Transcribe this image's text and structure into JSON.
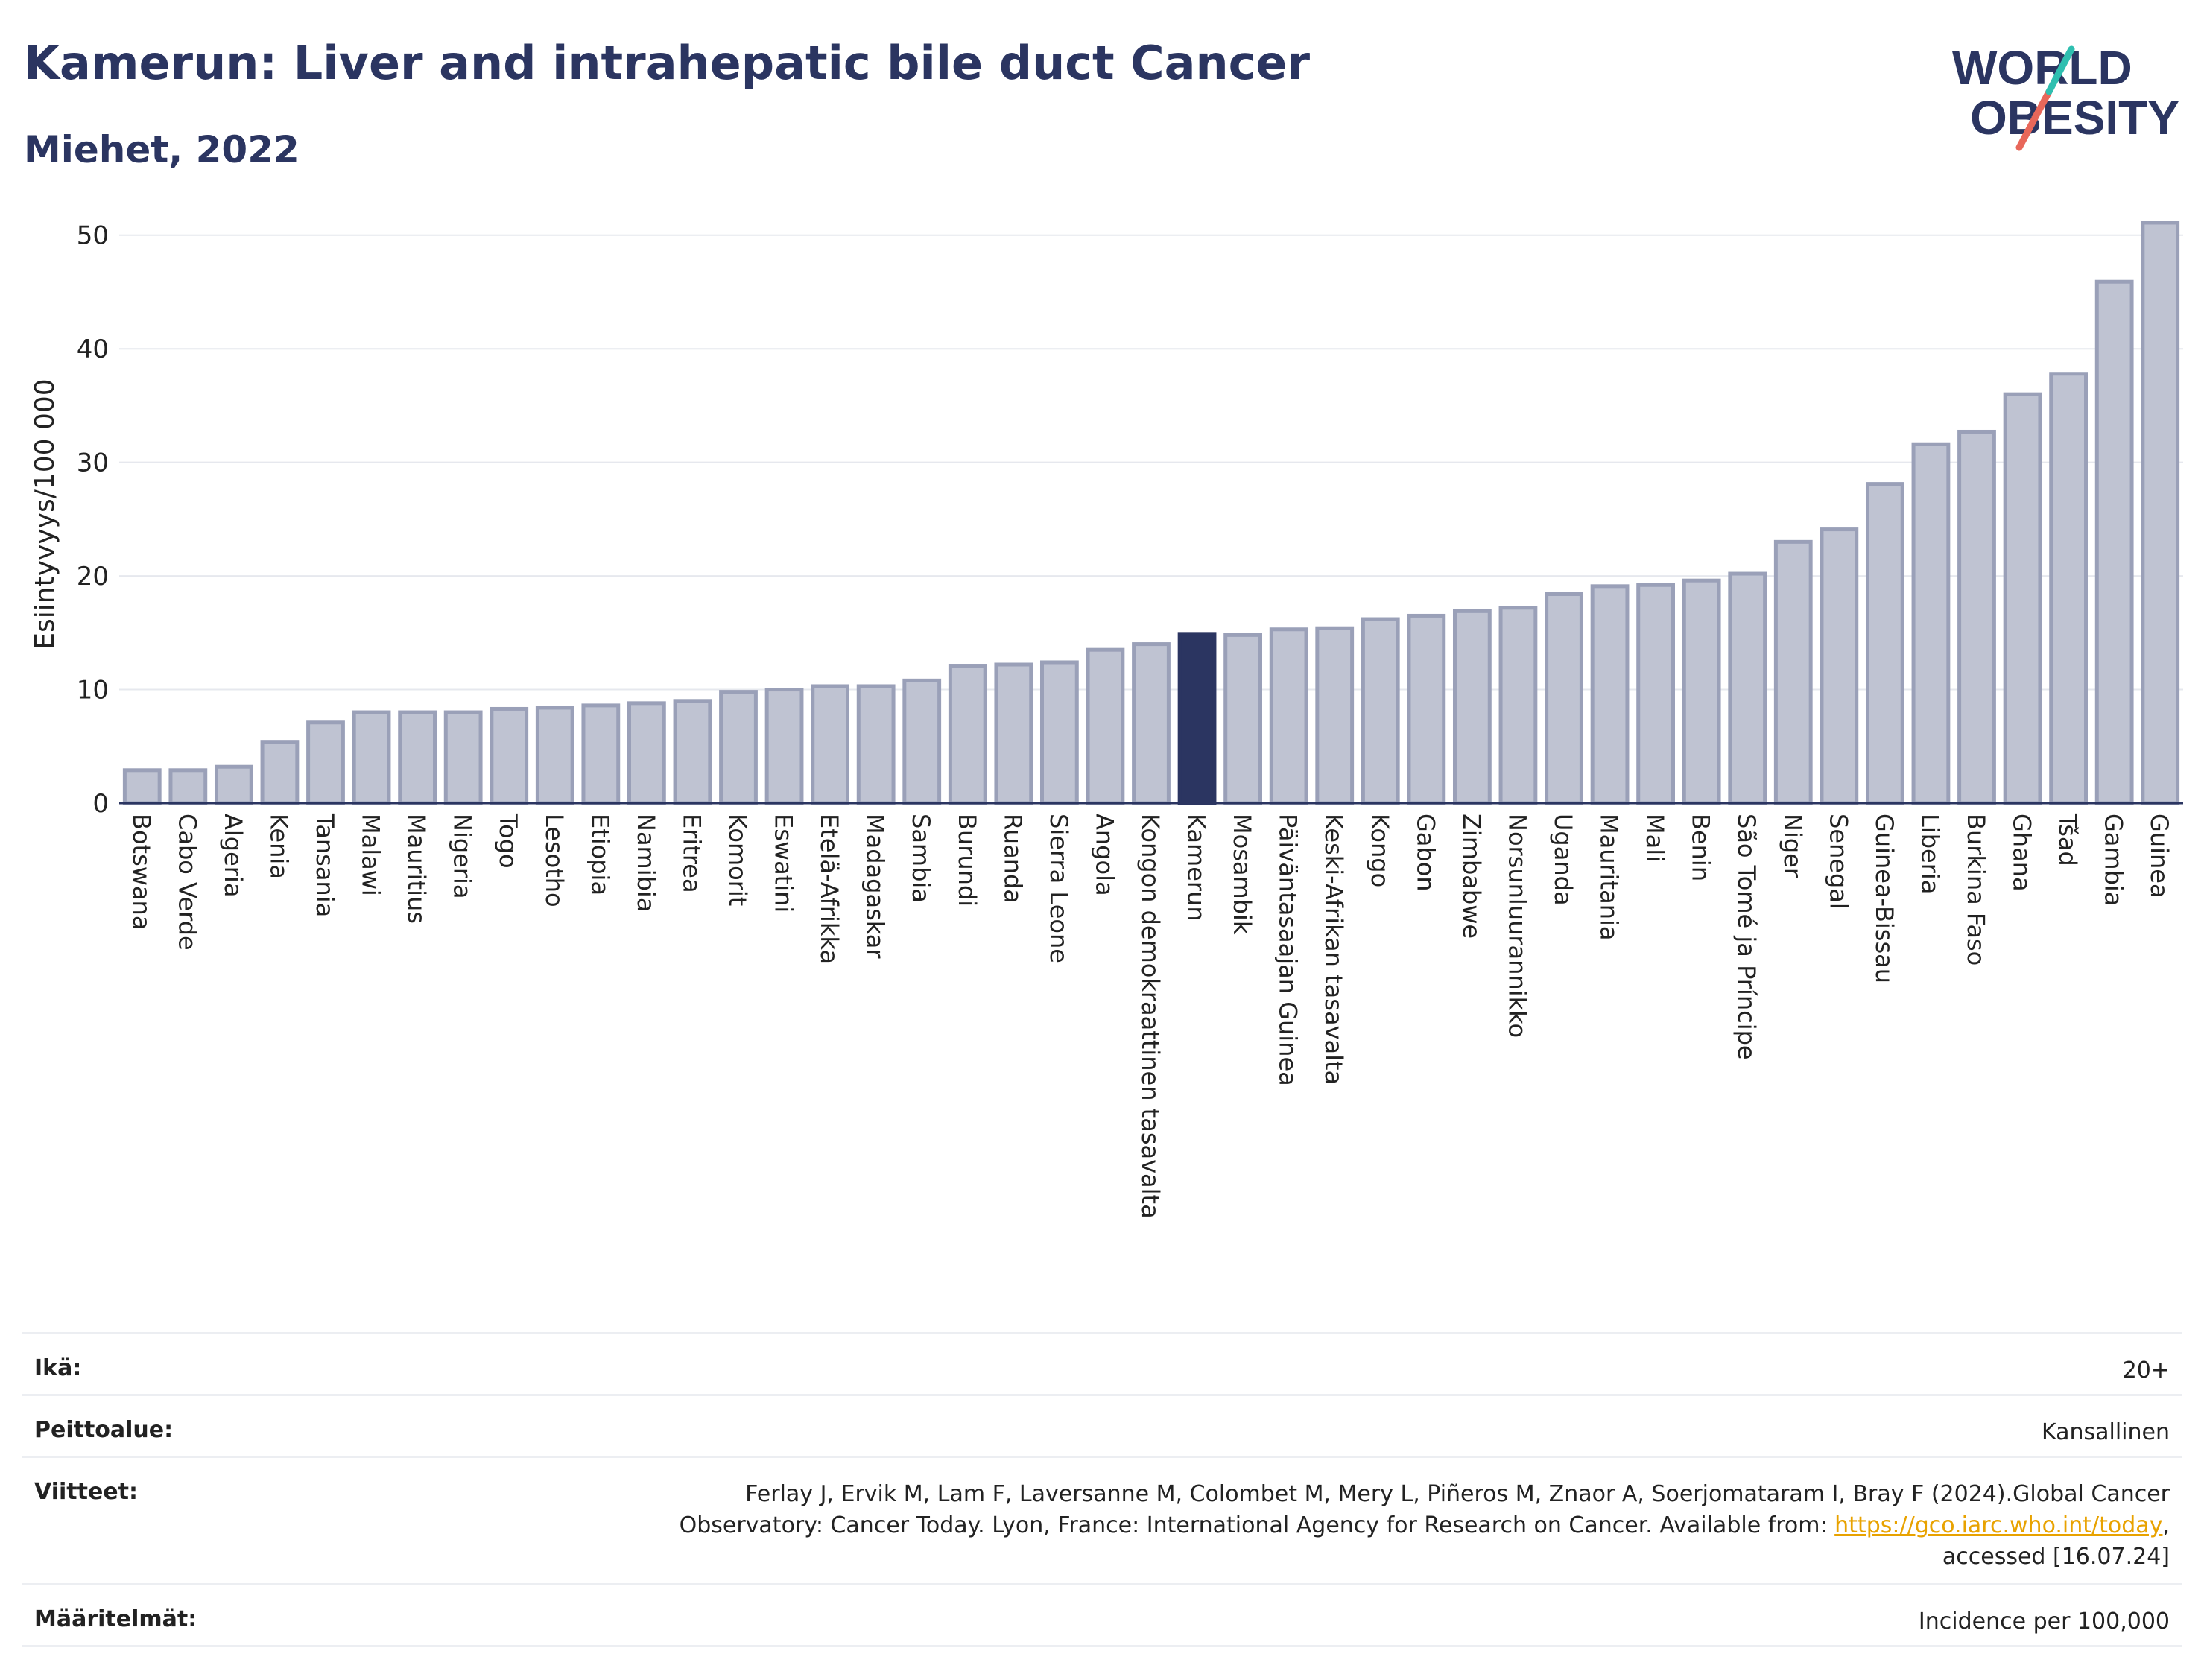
{
  "header": {
    "title": "Kamerun: Liver and intrahepatic bile duct Cancer",
    "subtitle": "Miehet, 2022"
  },
  "logo": {
    "line1": "WORLD",
    "line2": "OBESITY",
    "accent_colors": [
      "#2fbfb0",
      "#e8675a"
    ]
  },
  "colors": {
    "bar": "#bfc3d2",
    "bar_border": "#9aa0b8",
    "highlight": "#2b3561",
    "text_dark": "#2b3561"
  },
  "chart_data": {
    "type": "bar",
    "ylabel": "Esiintyvyys/100 000",
    "ylim": [
      0,
      53
    ],
    "yticks": [
      0,
      10,
      20,
      30,
      40,
      50
    ],
    "grid": true,
    "highlight": "Kamerun",
    "categories": [
      "Botswana",
      "Cabo Verde",
      "Algeria",
      "Kenia",
      "Tansania",
      "Malawi",
      "Mauritius",
      "Nigeria",
      "Togo",
      "Lesotho",
      "Etiopia",
      "Namibia",
      "Eritrea",
      "Komorit",
      "Eswatini",
      "Etelä-Afrikka",
      "Madagaskar",
      "Sambia",
      "Burundi",
      "Ruanda",
      "Sierra Leone",
      "Angola",
      "Kongon demokraattinen tasavalta",
      "Kamerun",
      "Mosambik",
      "Päiväntasaajan Guinea",
      "Keski-Afrikan tasavalta",
      "Kongo",
      "Gabon",
      "Zimbabwe",
      "Norsunluurannikko",
      "Uganda",
      "Mauritania",
      "Mali",
      "Benin",
      "São Tomé ja Príncipe",
      "Niger",
      "Senegal",
      "Guinea-Bissau",
      "Liberia",
      "Burkina Faso",
      "Ghana",
      "Tšad",
      "Gambia",
      "Guinea"
    ],
    "values": [
      2.9,
      2.9,
      3.2,
      5.4,
      7.1,
      8.0,
      8.0,
      8.0,
      8.3,
      8.4,
      8.6,
      8.8,
      9.0,
      9.8,
      10.0,
      10.3,
      10.3,
      10.8,
      12.1,
      12.2,
      12.4,
      13.5,
      14.0,
      14.9,
      14.8,
      15.3,
      15.4,
      16.2,
      16.5,
      16.9,
      17.2,
      18.4,
      19.1,
      19.2,
      19.6,
      20.2,
      23.0,
      24.1,
      28.1,
      31.6,
      32.7,
      36.0,
      37.8,
      45.9,
      51.1
    ]
  },
  "info": {
    "age_label": "Ikä:",
    "age_value": "20+",
    "coverage_label": "Peittoalue:",
    "coverage_value": "Kansallinen",
    "refs_label": "Viitteet:",
    "refs_line1": "Ferlay J, Ervik M, Lam F, Laversanne M, Colombet M, Mery L, Piñeros M, Znaor A, Soerjomataram I, Bray F (2024).Global Cancer",
    "refs_line2": "Observatory: Cancer Today. Lyon, France: International Agency for Research on Cancer. Available from:",
    "refs_link": "https://gco.iarc.who.int/today",
    "refs_line2_end": ",",
    "refs_line3": "accessed [16.07.24]",
    "defs_label": "Määritelmät:",
    "defs_value": "Incidence per 100,000"
  }
}
